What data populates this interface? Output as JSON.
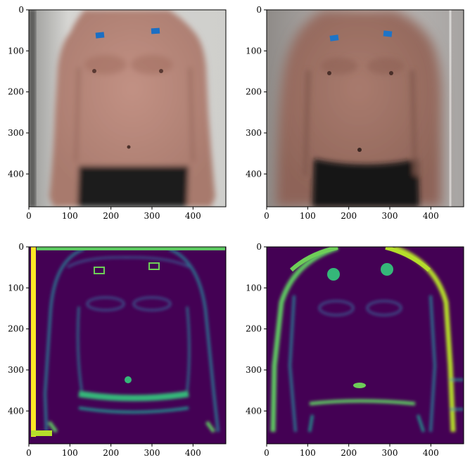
{
  "chart_data": [
    {
      "type": "image",
      "image_kind": "photo",
      "subject": "torso front view, lighter",
      "xlim": [
        0,
        480
      ],
      "ylim": [
        480,
        0
      ],
      "xticks": [
        0,
        100,
        200,
        300,
        400
      ],
      "yticks": [
        0,
        100,
        200,
        300,
        400
      ],
      "xtick_labels": [
        "0",
        "100",
        "200",
        "300",
        "400"
      ],
      "ytick_labels": [
        "0",
        "100",
        "200",
        "300",
        "400"
      ],
      "colors": {
        "skin": "#b58a7d",
        "background": "#c5c5c2",
        "shorts": "#1c1c1c",
        "marker": "#1b6fc4"
      }
    },
    {
      "type": "image",
      "image_kind": "photo",
      "subject": "torso front view, darker",
      "xlim": [
        0,
        480
      ],
      "ylim": [
        480,
        0
      ],
      "xticks": [
        0,
        100,
        200,
        300,
        400
      ],
      "yticks": [
        0,
        100,
        200,
        300,
        400
      ],
      "xtick_labels": [
        "0",
        "100",
        "200",
        "300",
        "400"
      ],
      "ytick_labels": [
        "0",
        "100",
        "200",
        "300",
        "400"
      ],
      "colors": {
        "skin": "#a07468",
        "background": "#b3b0ae",
        "shorts": "#181818",
        "marker": "#1e74c7"
      }
    },
    {
      "type": "heatmap",
      "colormap": "viridis",
      "subject": "edge map of torso (lighter)",
      "xlim": [
        0,
        480
      ],
      "ylim": [
        480,
        0
      ],
      "xticks": [
        0,
        100,
        200,
        300,
        400
      ],
      "yticks": [
        0,
        100,
        200,
        300,
        400
      ],
      "xtick_labels": [
        "0",
        "100",
        "200",
        "300",
        "400"
      ],
      "ytick_labels": [
        "0",
        "100",
        "200",
        "300",
        "400"
      ],
      "colors": {
        "low": "#440154",
        "mid": "#21918c",
        "high": "#fde725"
      }
    },
    {
      "type": "heatmap",
      "colormap": "viridis",
      "subject": "edge map of torso (darker)",
      "xlim": [
        0,
        480
      ],
      "ylim": [
        480,
        0
      ],
      "xticks": [
        0,
        100,
        200,
        300,
        400
      ],
      "yticks": [
        0,
        100,
        200,
        300,
        400
      ],
      "xtick_labels": [
        "0",
        "100",
        "200",
        "300",
        "400"
      ],
      "ytick_labels": [
        "0",
        "100",
        "200",
        "300",
        "400"
      ],
      "colors": {
        "low": "#440154",
        "mid": "#21918c",
        "high": "#fde725"
      }
    }
  ]
}
